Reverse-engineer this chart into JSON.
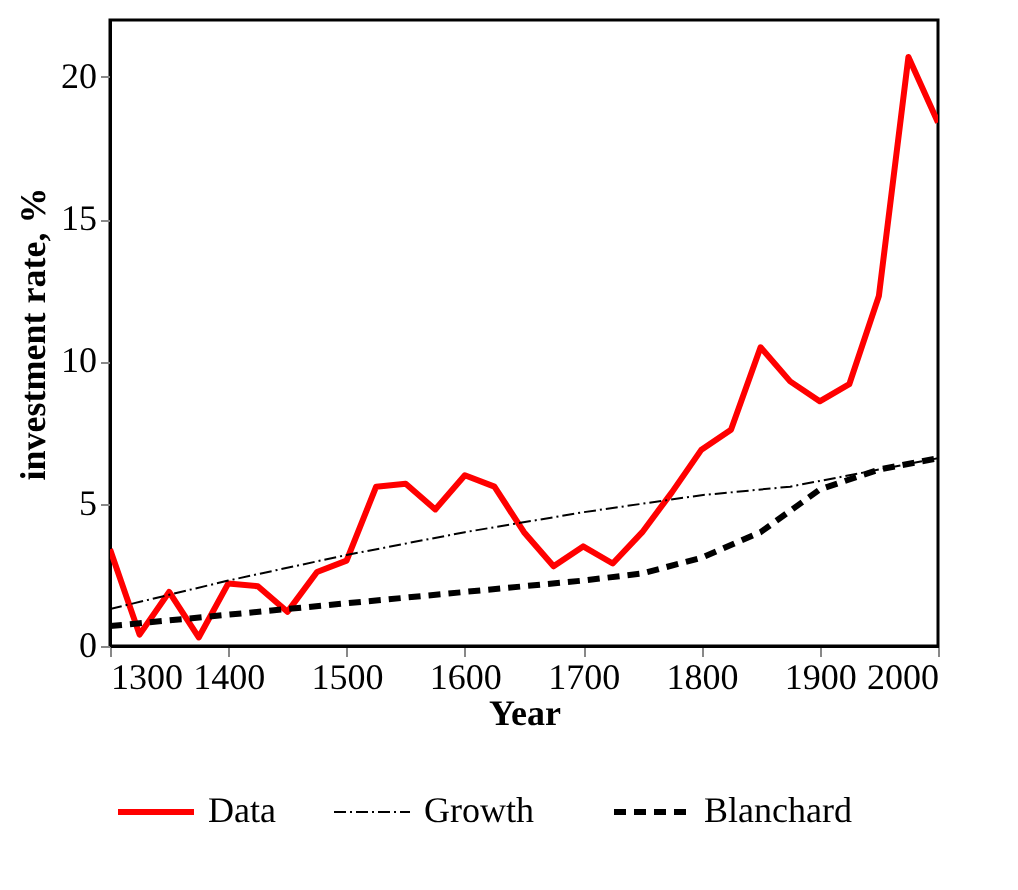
{
  "chart_data": {
    "type": "line",
    "xlabel": "Year",
    "ylabel": "investment rate, %",
    "xlim": [
      1300,
      2000
    ],
    "xticks": [
      1300,
      1400,
      1500,
      1600,
      1700,
      1800,
      1900,
      2000
    ],
    "ylim": [
      0,
      22
    ],
    "yticks": [
      0,
      5,
      10,
      15,
      20
    ],
    "grid": false,
    "legend": "bottom",
    "marker": "none",
    "series": [
      {
        "name": "Data",
        "color": "#ff0000",
        "line_style": "solid",
        "x": [
          1300,
          1325,
          1350,
          1375,
          1400,
          1425,
          1450,
          1475,
          1500,
          1525,
          1550,
          1575,
          1600,
          1625,
          1650,
          1675,
          1700,
          1725,
          1750,
          1775,
          1800,
          1825,
          1850,
          1875,
          1900,
          1925,
          1950,
          1975,
          2000
        ],
        "values": [
          3.4,
          0.4,
          1.9,
          0.3,
          2.2,
          2.1,
          1.2,
          2.6,
          3.0,
          5.6,
          5.7,
          4.8,
          6.0,
          5.6,
          4.0,
          2.8,
          3.5,
          2.9,
          4.0,
          5.4,
          6.9,
          7.6,
          10.5,
          9.3,
          8.6,
          9.2,
          12.3,
          20.7,
          18.4
        ]
      },
      {
        "name": "Growth",
        "color": "#000000",
        "line_style": "dashdot",
        "x": [
          1300,
          1400,
          1500,
          1600,
          1700,
          1800,
          1875,
          1950,
          2000
        ],
        "values": [
          1.3,
          2.3,
          3.2,
          4.0,
          4.7,
          5.3,
          5.6,
          6.2,
          6.6
        ]
      },
      {
        "name": "Blanchard",
        "color": "#000000",
        "line_style": "dashed",
        "x": [
          1300,
          1400,
          1500,
          1600,
          1650,
          1700,
          1750,
          1800,
          1850,
          1900,
          1950,
          2000
        ],
        "values": [
          0.7,
          1.1,
          1.5,
          1.9,
          2.1,
          2.3,
          2.55,
          3.1,
          4.0,
          5.5,
          6.2,
          6.6
        ]
      }
    ]
  }
}
